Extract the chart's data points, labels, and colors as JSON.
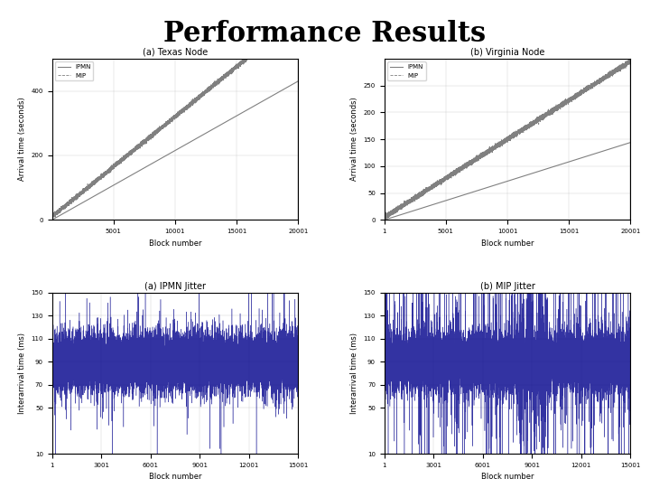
{
  "title": "Performance Results",
  "title_fontsize": 22,
  "top_left_title": "(a) Texas Node",
  "top_right_title": "(b) Virginia Node",
  "bot_left_title": "(a) IPMN Jitter",
  "bot_right_title": "(b) MIP Jitter",
  "top_left": {
    "xlabel": "Block number",
    "ylabel": "Arrival time (seconds)",
    "xlim": [
      1,
      20001
    ],
    "ylim": [
      0,
      500
    ],
    "yticks": [
      0,
      200,
      400
    ],
    "xticks": [
      5001,
      10001,
      15001,
      20001
    ],
    "ipmn_slope": 0.0215,
    "mip_slope": 0.031,
    "mip_intercept": 10
  },
  "top_right": {
    "xlabel": "Block number",
    "ylabel": "Arrival time (seconds)",
    "xlim": [
      1,
      20001
    ],
    "ylim": [
      0,
      300
    ],
    "yticks": [
      0,
      50,
      100,
      150,
      200,
      250
    ],
    "xticks": [
      1,
      5001,
      10001,
      15001,
      20001
    ],
    "ipmn_slope": 0.0072,
    "mip_slope": 0.0145,
    "mip_intercept": 5
  },
  "bot_left": {
    "xlabel": "Block number",
    "ylabel": "Interarrival time (ms)",
    "xlim": [
      1,
      15001
    ],
    "ylim": [
      10,
      150
    ],
    "yticks": [
      10,
      50,
      90,
      110,
      130,
      150
    ],
    "xticks": [
      1,
      3001,
      6001,
      9001,
      12001,
      15001
    ],
    "base": 90,
    "noise_scale": 12,
    "spike_probability": 0.02,
    "spike_scale": 30,
    "color": "#00008B"
  },
  "bot_right": {
    "xlabel": "Block number",
    "ylabel": "Interarrival time (ms)",
    "xlim": [
      1,
      15001
    ],
    "ylim": [
      10,
      150
    ],
    "yticks": [
      10,
      50,
      90,
      110,
      130,
      150
    ],
    "xticks": [
      1,
      3001,
      6001,
      9001,
      12001,
      15001
    ],
    "base": 90,
    "noise_scale": 12,
    "spike_probability": 0.04,
    "spike_scale": 60,
    "spike_region_start": 8000,
    "spike_region_end": 10000,
    "color": "#00008B"
  },
  "legend_ipmn": "IPMN",
  "legend_mip": "MIP",
  "line_color_ipmn": "#808080",
  "line_color_mip": "#808080",
  "bg_color": "#ffffff"
}
